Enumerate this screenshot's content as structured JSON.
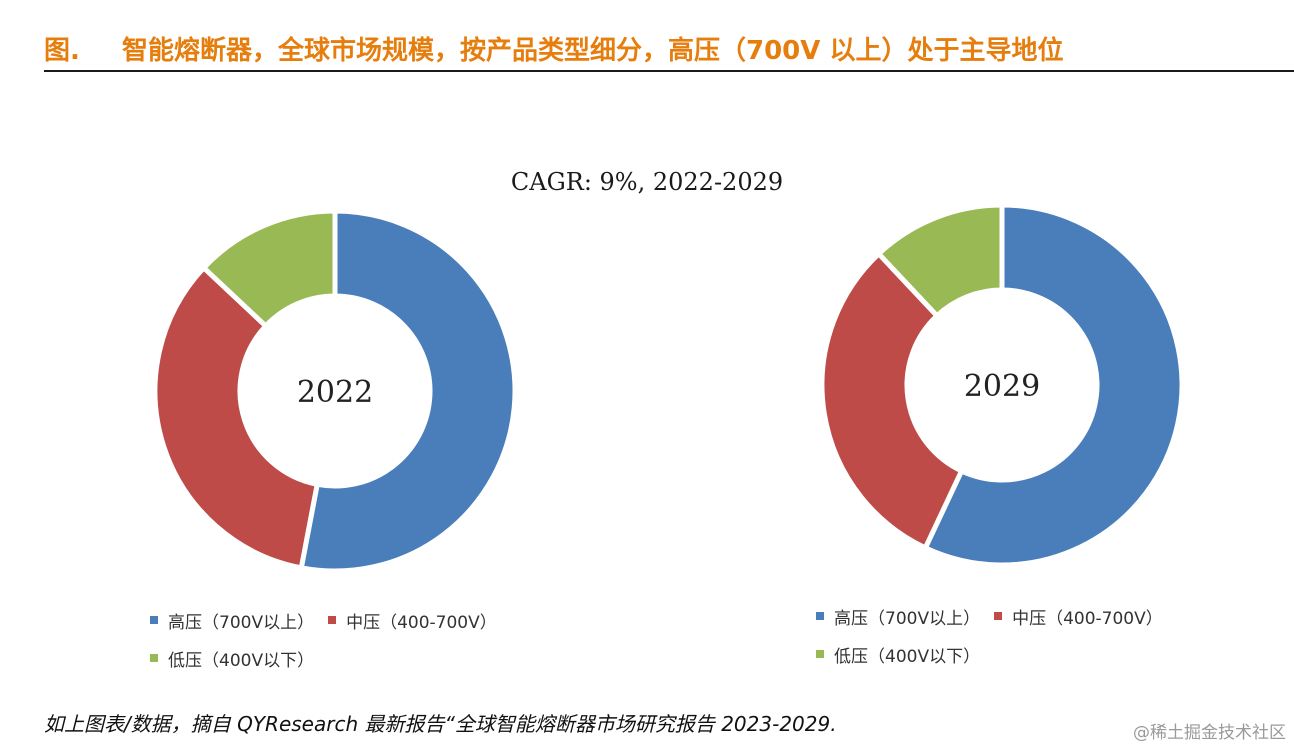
{
  "header": {
    "prefix": "图.",
    "title": "智能熔断器，全球市场规模，按产品类型细分，高压（700V 以上）处于主导地位"
  },
  "chart_data": [
    {
      "type": "donut",
      "center_label": "2022",
      "title": "",
      "slices": [
        {
          "name": "高压（700V以上）",
          "value": 53,
          "color": "#4a7ebb"
        },
        {
          "name": "中压（400-700V）",
          "value": 34,
          "color": "#be4b48"
        },
        {
          "name": "低压（400V以下）",
          "value": 13,
          "color": "#98b954"
        }
      ],
      "legend_position": "bottom"
    },
    {
      "type": "donut",
      "center_label": "2029",
      "title": "",
      "slices": [
        {
          "name": "高压（700V以上）",
          "value": 57,
          "color": "#4a7ebb"
        },
        {
          "name": "中压（400-700V）",
          "value": 31,
          "color": "#be4b48"
        },
        {
          "name": "低压（400V以下）",
          "value": 12,
          "color": "#98b954"
        }
      ],
      "legend_position": "bottom"
    }
  ],
  "cagr_text": "CAGR: 9%, 2022-2029",
  "legend": {
    "items": [
      {
        "label": "高压（700V以上）",
        "color": "#4a7ebb"
      },
      {
        "label": "中压（400-700V）",
        "color": "#be4b48"
      },
      {
        "label": "低压（400V以下）",
        "color": "#98b954"
      }
    ]
  },
  "footer": {
    "source": "如上图表/数据，摘自 QYResearch 最新报告“全球智能熔断器市场研究报告 2023-2029.",
    "watermark": "@稀土掘金技术社区"
  }
}
